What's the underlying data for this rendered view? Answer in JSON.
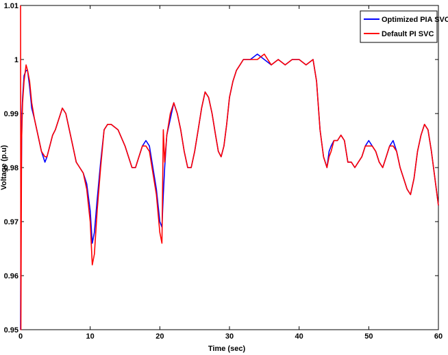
{
  "chart_data": {
    "type": "line",
    "title": "",
    "xlabel": "Time (sec)",
    "ylabel": "Voltage (p.u)",
    "xlim": [
      0,
      60
    ],
    "ylim": [
      0.95,
      1.01
    ],
    "xticks": [
      0,
      10,
      20,
      30,
      40,
      50,
      60
    ],
    "xtick_labels": [
      "0",
      "10",
      "20",
      "30",
      "40",
      "50",
      "60"
    ],
    "yticks": [
      0.95,
      0.96,
      0.97,
      0.98,
      0.99,
      1.0,
      1.01
    ],
    "ytick_labels": [
      "0.95",
      "0.96",
      "0.97",
      "0.98",
      "0.99",
      "1",
      "1.01"
    ],
    "grid": false,
    "legend_position": "top-right",
    "series": [
      {
        "name": "Optimized PIA SVC",
        "color": "#0000ff",
        "x": [
          0,
          0.05,
          0.2,
          0.3,
          0.5,
          0.8,
          1.0,
          1.3,
          1.6,
          2.0,
          2.5,
          3.0,
          3.5,
          3.8,
          4.2,
          4.6,
          5.0,
          5.5,
          6.0,
          6.5,
          7.0,
          7.5,
          8.0,
          8.5,
          9.0,
          9.5,
          10.0,
          10.3,
          10.6,
          11.0,
          11.5,
          12.0,
          12.5,
          13.0,
          14.0,
          15.0,
          15.5,
          16.0,
          16.5,
          17.0,
          17.5,
          18.0,
          18.5,
          19.0,
          19.5,
          20.0,
          20.3,
          20.5,
          20.7,
          21.0,
          21.5,
          22.0,
          22.5,
          23.0,
          23.5,
          24.0,
          24.5,
          25.0,
          25.5,
          26.0,
          26.5,
          27.0,
          27.5,
          28.0,
          28.4,
          28.8,
          29.2,
          29.6,
          30.0,
          30.5,
          31.0,
          31.5,
          32.0,
          33.0,
          34.0,
          35.0,
          36.0,
          37.0,
          38.0,
          39.0,
          40.0,
          41.0,
          42.0,
          42.5,
          43.0,
          43.5,
          44.0,
          44.3,
          44.6,
          45.0,
          45.5,
          46.0,
          46.5,
          47.0,
          47.5,
          48.0,
          48.5,
          49.0,
          49.5,
          50.0,
          50.5,
          51.0,
          51.5,
          52.0,
          52.5,
          53.0,
          53.5,
          54.0,
          54.5,
          55.0,
          55.5,
          56.0,
          56.5,
          57.0,
          57.5,
          58.0,
          58.5,
          59.0,
          59.5,
          60.0
        ],
        "y": [
          0.95,
          0.97,
          0.99,
          0.993,
          0.997,
          0.998,
          0.998,
          0.995,
          0.991,
          0.989,
          0.986,
          0.983,
          0.981,
          0.982,
          0.984,
          0.986,
          0.987,
          0.989,
          0.991,
          0.99,
          0.987,
          0.984,
          0.981,
          0.98,
          0.979,
          0.977,
          0.972,
          0.966,
          0.968,
          0.974,
          0.981,
          0.987,
          0.988,
          0.988,
          0.987,
          0.984,
          0.982,
          0.98,
          0.98,
          0.982,
          0.984,
          0.985,
          0.984,
          0.98,
          0.976,
          0.97,
          0.969,
          0.975,
          0.98,
          0.986,
          0.989,
          0.992,
          0.99,
          0.987,
          0.983,
          0.98,
          0.98,
          0.983,
          0.987,
          0.991,
          0.994,
          0.993,
          0.99,
          0.986,
          0.983,
          0.982,
          0.984,
          0.988,
          0.993,
          0.996,
          0.998,
          0.999,
          1.0,
          1.0,
          1.001,
          1.0,
          0.999,
          1.0,
          0.999,
          1.0,
          1.0,
          0.999,
          1.0,
          0.996,
          0.987,
          0.982,
          0.98,
          0.983,
          0.984,
          0.985,
          0.985,
          0.986,
          0.985,
          0.981,
          0.981,
          0.98,
          0.981,
          0.982,
          0.984,
          0.985,
          0.984,
          0.983,
          0.981,
          0.98,
          0.982,
          0.984,
          0.985,
          0.983,
          0.98,
          0.978,
          0.976,
          0.975,
          0.978,
          0.983,
          0.986,
          0.988,
          0.987,
          0.983,
          0.978,
          0.973
        ]
      },
      {
        "name": "Default PI SVC",
        "color": "#ff0000",
        "x": [
          0,
          0.05,
          0.15,
          0.3,
          0.5,
          0.8,
          1.0,
          1.3,
          1.6,
          2.0,
          2.5,
          3.0,
          3.5,
          3.8,
          4.2,
          4.6,
          5.0,
          5.5,
          6.0,
          6.5,
          7.0,
          7.5,
          8.0,
          8.5,
          9.0,
          9.5,
          10.0,
          10.3,
          10.6,
          11.0,
          11.5,
          12.0,
          12.5,
          13.0,
          14.0,
          15.0,
          15.5,
          16.0,
          16.5,
          17.0,
          17.5,
          18.0,
          18.5,
          19.0,
          19.5,
          20.0,
          20.3,
          20.5,
          20.7,
          21.0,
          21.5,
          22.0,
          22.5,
          23.0,
          23.5,
          24.0,
          24.5,
          25.0,
          25.5,
          26.0,
          26.5,
          27.0,
          27.5,
          28.0,
          28.4,
          28.8,
          29.2,
          29.6,
          30.0,
          30.5,
          31.0,
          31.5,
          32.0,
          33.0,
          34.0,
          35.0,
          36.0,
          37.0,
          38.0,
          39.0,
          40.0,
          41.0,
          42.0,
          42.5,
          43.0,
          43.5,
          44.0,
          44.3,
          44.6,
          45.0,
          45.5,
          46.0,
          46.5,
          47.0,
          47.5,
          48.0,
          48.5,
          49.0,
          49.5,
          50.0,
          50.5,
          51.0,
          51.5,
          52.0,
          52.5,
          53.0,
          53.5,
          54.0,
          54.5,
          55.0,
          55.5,
          56.0,
          56.5,
          57.0,
          57.5,
          58.0,
          58.5,
          59.0,
          59.5,
          60.0
        ],
        "y": [
          1.01,
          0.95,
          0.985,
          0.992,
          0.996,
          0.999,
          0.998,
          0.996,
          0.992,
          0.989,
          0.986,
          0.983,
          0.982,
          0.982,
          0.984,
          0.986,
          0.987,
          0.989,
          0.991,
          0.99,
          0.987,
          0.984,
          0.981,
          0.98,
          0.979,
          0.976,
          0.97,
          0.962,
          0.964,
          0.972,
          0.98,
          0.987,
          0.988,
          0.988,
          0.987,
          0.984,
          0.982,
          0.98,
          0.98,
          0.982,
          0.984,
          0.984,
          0.983,
          0.979,
          0.975,
          0.968,
          0.966,
          0.987,
          0.981,
          0.986,
          0.99,
          0.992,
          0.99,
          0.987,
          0.983,
          0.98,
          0.98,
          0.983,
          0.987,
          0.991,
          0.994,
          0.993,
          0.99,
          0.986,
          0.983,
          0.982,
          0.984,
          0.988,
          0.993,
          0.996,
          0.998,
          0.999,
          1.0,
          1.0,
          1.0,
          1.001,
          0.999,
          1.0,
          0.999,
          1.0,
          1.0,
          0.999,
          1.0,
          0.996,
          0.987,
          0.982,
          0.98,
          0.982,
          0.983,
          0.985,
          0.985,
          0.986,
          0.985,
          0.981,
          0.981,
          0.98,
          0.981,
          0.982,
          0.984,
          0.984,
          0.984,
          0.983,
          0.981,
          0.98,
          0.982,
          0.984,
          0.984,
          0.983,
          0.98,
          0.978,
          0.976,
          0.975,
          0.978,
          0.983,
          0.986,
          0.988,
          0.987,
          0.983,
          0.978,
          0.973
        ]
      }
    ]
  }
}
